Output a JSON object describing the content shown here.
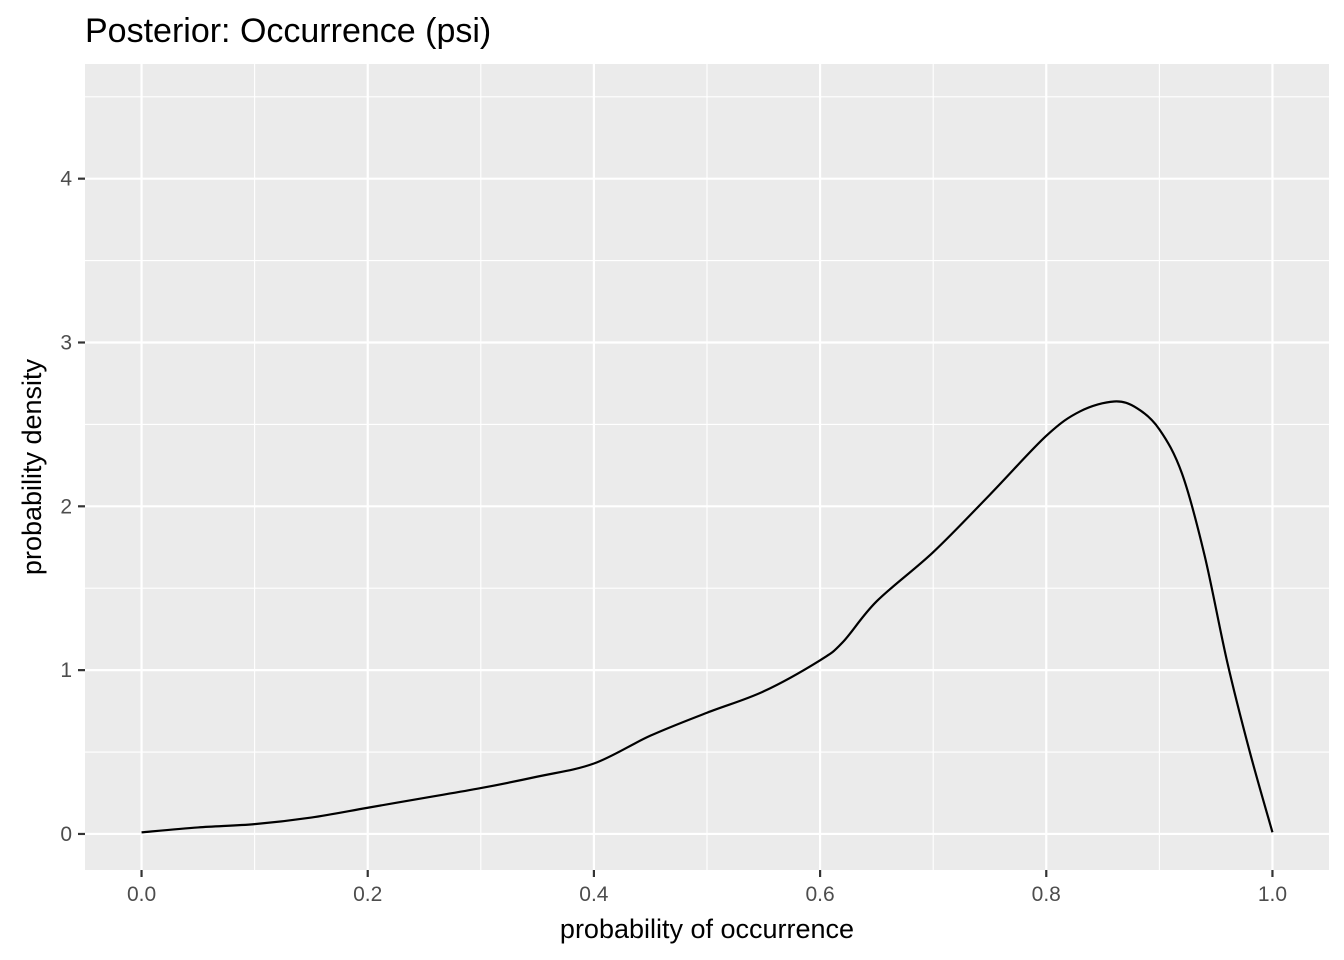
{
  "chart_data": {
    "type": "line",
    "title": "Posterior: Occurrence (psi)",
    "xlabel": "probability of occurrence",
    "ylabel": "probability density",
    "xlim": [
      -0.05,
      1.05
    ],
    "ylim": [
      -0.22,
      4.7
    ],
    "x_ticks": [
      0.0,
      0.2,
      0.4,
      0.6,
      0.8,
      1.0
    ],
    "x_tick_labels": [
      "0.0",
      "0.2",
      "0.4",
      "0.6",
      "0.8",
      "1.0"
    ],
    "y_ticks": [
      0,
      1,
      2,
      3,
      4
    ],
    "y_tick_labels": [
      "0",
      "1",
      "2",
      "3",
      "4"
    ],
    "grid": true,
    "colors": {
      "panel": "#ebebeb",
      "grid": "#ffffff",
      "line": "#000000",
      "tick": "#333333"
    },
    "series": [
      {
        "x": [
          0.0,
          0.05,
          0.1,
          0.15,
          0.2,
          0.25,
          0.3,
          0.35,
          0.4,
          0.45,
          0.5,
          0.55,
          0.6,
          0.62,
          0.65,
          0.7,
          0.75,
          0.8,
          0.83,
          0.86,
          0.88,
          0.9,
          0.92,
          0.94,
          0.96,
          0.98,
          1.0
        ],
        "y": [
          0.01,
          0.04,
          0.06,
          0.1,
          0.16,
          0.22,
          0.28,
          0.35,
          0.43,
          0.6,
          0.74,
          0.87,
          1.06,
          1.17,
          1.42,
          1.72,
          2.07,
          2.43,
          2.58,
          2.64,
          2.6,
          2.47,
          2.2,
          1.7,
          1.05,
          0.5,
          0.01
        ]
      }
    ]
  }
}
